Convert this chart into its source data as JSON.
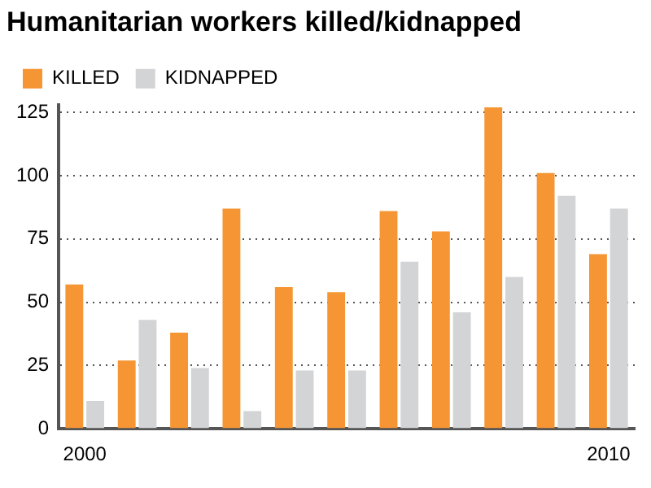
{
  "chart_data": {
    "type": "bar",
    "title": "Humanitarian workers killed/kidnapped",
    "categories": [
      "2000",
      null,
      null,
      null,
      null,
      null,
      null,
      null,
      null,
      null,
      "2010"
    ],
    "series": [
      {
        "name": "KILLED",
        "color": "#f59533",
        "values": [
          57,
          27,
          38,
          87,
          56,
          54,
          86,
          78,
          127,
          101,
          69
        ]
      },
      {
        "name": "KIDNAPPED",
        "color": "#d3d4d6",
        "values": [
          11,
          43,
          24,
          7,
          23,
          23,
          66,
          46,
          60,
          92,
          87
        ]
      }
    ],
    "ylim": [
      0,
      128
    ],
    "yticks": [
      0,
      25,
      50,
      75,
      100,
      125
    ],
    "grid": "y",
    "legend": "top left"
  }
}
